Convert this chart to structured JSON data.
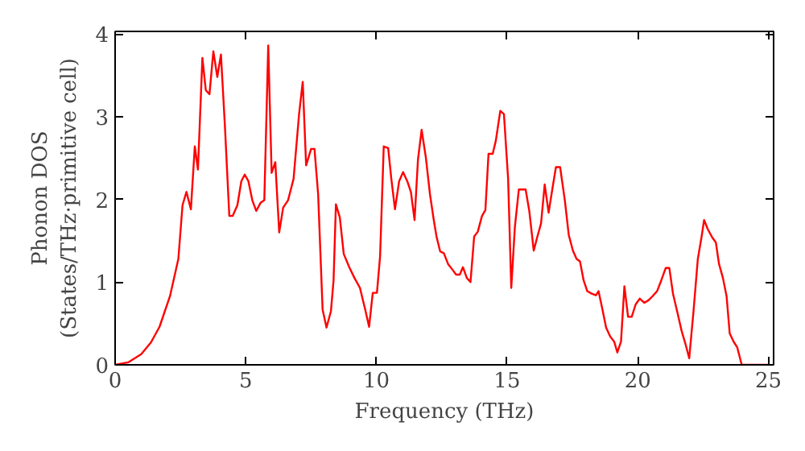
{
  "chart_data": {
    "type": "line",
    "xlabel": "Frequency (THz)",
    "ylabel": "Phonon DOS\n(States/THz·primitive cell)",
    "xlim": [
      0,
      25.2
    ],
    "ylim": [
      0,
      4.03
    ],
    "xticks": [
      0,
      5,
      10,
      15,
      20,
      25
    ],
    "yticks": [
      0,
      1,
      2,
      3,
      4
    ],
    "grid": false,
    "series": [
      {
        "color": "#ff0000",
        "x": [
          0,
          0.5,
          1.0,
          1.37,
          1.7,
          2.1,
          2.42,
          2.58,
          2.73,
          2.9,
          3.05,
          3.17,
          3.34,
          3.47,
          3.61,
          3.76,
          3.91,
          4.05,
          4.2,
          4.37,
          4.5,
          4.68,
          4.83,
          4.96,
          5.1,
          5.25,
          5.4,
          5.57,
          5.71,
          5.86,
          5.99,
          6.13,
          6.28,
          6.43,
          6.62,
          6.83,
          7.04,
          7.18,
          7.31,
          7.5,
          7.63,
          7.77,
          7.94,
          8.09,
          8.26,
          8.36,
          8.45,
          8.6,
          8.75,
          8.96,
          9.16,
          9.37,
          9.57,
          9.72,
          9.86,
          10.02,
          10.14,
          10.28,
          10.45,
          10.57,
          10.71,
          10.87,
          11.02,
          11.18,
          11.32,
          11.46,
          11.59,
          11.73,
          11.89,
          12.05,
          12.2,
          12.3,
          12.44,
          12.58,
          12.74,
          12.91,
          13.05,
          13.19,
          13.31,
          13.46,
          13.6,
          13.74,
          13.88,
          14.04,
          14.17,
          14.29,
          14.45,
          14.57,
          14.74,
          14.88,
          15.04,
          15.16,
          15.3,
          15.45,
          15.71,
          15.85,
          16.02,
          16.16,
          16.3,
          16.44,
          16.59,
          16.73,
          16.87,
          17.03,
          17.21,
          17.36,
          17.52,
          17.66,
          17.79,
          17.93,
          18.07,
          18.24,
          18.4,
          18.5,
          18.65,
          18.79,
          18.95,
          19.1,
          19.22,
          19.36,
          19.49,
          19.63,
          19.77,
          19.92,
          20.08,
          20.25,
          20.41,
          20.57,
          20.74,
          20.9,
          21.07,
          21.21,
          21.35,
          21.52,
          21.68,
          21.82,
          21.97,
          22.13,
          22.3,
          22.44,
          22.54,
          22.68,
          22.85,
          22.99,
          23.11,
          23.26,
          23.4,
          23.52,
          23.67,
          23.81,
          23.98,
          25
        ],
        "values": [
          0,
          0.03,
          0.13,
          0.27,
          0.46,
          0.83,
          1.28,
          1.93,
          2.09,
          1.88,
          2.64,
          2.36,
          3.71,
          3.32,
          3.27,
          3.79,
          3.48,
          3.75,
          2.9,
          1.8,
          1.8,
          1.93,
          2.22,
          2.3,
          2.22,
          1.99,
          1.86,
          1.96,
          1.99,
          3.86,
          2.32,
          2.45,
          1.6,
          1.9,
          1.99,
          2.25,
          3.03,
          3.42,
          2.41,
          2.61,
          2.61,
          2.06,
          0.67,
          0.45,
          0.65,
          1.02,
          1.94,
          1.78,
          1.34,
          1.18,
          1.05,
          0.93,
          0.67,
          0.46,
          0.87,
          0.87,
          1.31,
          2.64,
          2.62,
          2.25,
          1.88,
          2.22,
          2.33,
          2.22,
          2.09,
          1.75,
          2.48,
          2.84,
          2.51,
          2.06,
          1.74,
          1.55,
          1.37,
          1.35,
          1.22,
          1.15,
          1.09,
          1.09,
          1.18,
          1.05,
          1.0,
          1.55,
          1.61,
          1.8,
          1.87,
          2.55,
          2.55,
          2.71,
          3.07,
          3.03,
          2.25,
          0.93,
          1.67,
          2.12,
          2.12,
          1.86,
          1.38,
          1.55,
          1.71,
          2.18,
          1.84,
          2.12,
          2.39,
          2.39,
          1.99,
          1.57,
          1.38,
          1.28,
          1.25,
          1.02,
          0.89,
          0.86,
          0.84,
          0.89,
          0.67,
          0.45,
          0.34,
          0.28,
          0.15,
          0.28,
          0.95,
          0.58,
          0.58,
          0.73,
          0.8,
          0.75,
          0.78,
          0.83,
          0.89,
          1.02,
          1.17,
          1.17,
          0.86,
          0.63,
          0.41,
          0.26,
          0.08,
          0.63,
          1.28,
          1.54,
          1.75,
          1.64,
          1.54,
          1.48,
          1.22,
          1.05,
          0.83,
          0.38,
          0.28,
          0.21,
          0,
          0
        ]
      }
    ]
  }
}
